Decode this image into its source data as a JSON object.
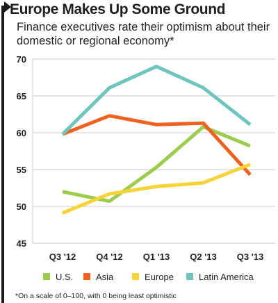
{
  "title": "Europe Makes Up Some Ground",
  "subtitle": "Finance executives rate their optimism about their domestic or regional economy*",
  "footnote": "*On a scale of 0–100, with 0 being least optimistic",
  "chart_data": {
    "type": "line",
    "x": [
      "Q3 '12",
      "Q4 '12",
      "Q1 '13",
      "Q2 '13",
      "Q3 '13"
    ],
    "ylim": [
      45,
      70
    ],
    "yticks": [
      45,
      50,
      55,
      60,
      65,
      70
    ],
    "grid": true,
    "legend_position": "bottom",
    "series": [
      {
        "name": "U.S.",
        "color": "#9ccc4b",
        "values": [
          52.0,
          50.7,
          55.3,
          60.8,
          58.2
        ]
      },
      {
        "name": "Asia",
        "color": "#f0611f",
        "values": [
          59.8,
          62.3,
          61.1,
          61.3,
          54.3
        ]
      },
      {
        "name": "Europe",
        "color": "#f7d33a",
        "values": [
          49.1,
          51.7,
          52.7,
          53.2,
          55.7
        ]
      },
      {
        "name": "Latin America",
        "color": "#6dc5bd",
        "values": [
          59.8,
          66.1,
          69.0,
          66.1,
          61.1
        ]
      }
    ]
  }
}
